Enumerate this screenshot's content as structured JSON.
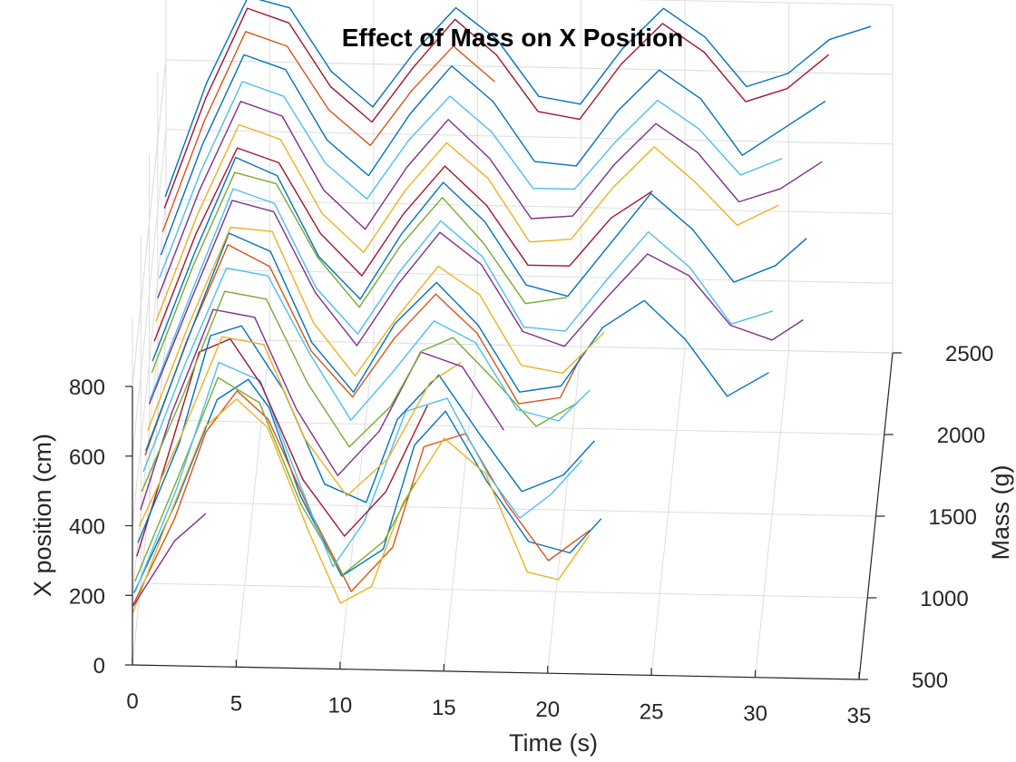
{
  "chart_data": {
    "type": "line",
    "projection": "3d",
    "title": "Effect of Mass on  X Position",
    "xlabel": "Time (s)",
    "ylabel": "Mass (g)",
    "zlabel": "X position (cm)",
    "xlim": [
      0,
      35
    ],
    "ylim": [
      500,
      2500
    ],
    "zlim": [
      0,
      800
    ],
    "x_ticks": [
      "0",
      "5",
      "10",
      "15",
      "20",
      "25",
      "30",
      "35"
    ],
    "y_ticks": [
      "500",
      "1000",
      "1500",
      "2000",
      "2500"
    ],
    "z_ticks": [
      "0",
      "200",
      "400",
      "600",
      "800"
    ],
    "grid": true,
    "legend": "none",
    "series": [
      {
        "color": "#0072BD",
        "x": [
          0,
          2,
          4,
          5.5,
          6.5,
          8,
          10,
          12,
          13.5,
          15,
          17,
          19,
          21,
          22.5
        ],
        "y": [
          600,
          600,
          600,
          600,
          600,
          600,
          600,
          600,
          600,
          600,
          600,
          600,
          600,
          600
        ],
        "z": [
          160,
          420,
          720,
          780,
          700,
          450,
          220,
          300,
          600,
          700,
          500,
          330,
          300,
          400
        ]
      },
      {
        "color": "#D95319",
        "x": [
          0,
          2,
          3.5,
          5,
          6.5,
          8.5,
          10.5,
          12.5,
          14,
          16,
          18,
          20,
          22
        ],
        "y": [
          550,
          550,
          550,
          550,
          550,
          550,
          550,
          550,
          550,
          550,
          550,
          550,
          550
        ],
        "z": [
          150,
          400,
          650,
          770,
          690,
          430,
          200,
          330,
          620,
          660,
          460,
          300,
          390
        ]
      },
      {
        "color": "#EDB120",
        "x": [
          0,
          1.5,
          3.5,
          5,
          6.5,
          8.5,
          10,
          11.5,
          13,
          15,
          17,
          19,
          20.5,
          22
        ],
        "y": [
          520,
          520,
          520,
          520,
          520,
          520,
          520,
          520,
          520,
          520,
          520,
          520,
          520,
          520
        ],
        "z": [
          140,
          380,
          680,
          760,
          680,
          380,
          180,
          230,
          470,
          660,
          560,
          280,
          260,
          390
        ]
      },
      {
        "color": "#7E2F8E",
        "x": [
          0,
          2,
          3.5
        ],
        "y": [
          540,
          540,
          540
        ],
        "z": [
          150,
          340,
          420
        ]
      },
      {
        "color": "#77AC30",
        "x": [
          0,
          2,
          4,
          6,
          8,
          10,
          12,
          13.5
        ],
        "y": [
          650,
          650,
          650,
          650,
          650,
          650,
          650,
          650
        ],
        "z": [
          170,
          460,
          760,
          690,
          400,
          200,
          300,
          470
        ]
      },
      {
        "color": "#4DBEEE",
        "x": [
          0,
          2,
          4,
          6,
          8,
          9.5,
          11,
          13,
          15,
          17,
          18.5,
          20,
          21.5
        ],
        "y": [
          700,
          700,
          700,
          700,
          700,
          700,
          700,
          700,
          700,
          700,
          700,
          700,
          700
        ],
        "z": [
          120,
          420,
          780,
          730,
          420,
          200,
          330,
          650,
          690,
          470,
          350,
          420,
          520
        ]
      },
      {
        "color": "#A2142F",
        "x": [
          0,
          1.5,
          3,
          4.5,
          6,
          8,
          10,
          12,
          14
        ],
        "y": [
          760,
          760,
          760,
          760,
          760,
          760,
          760,
          760,
          760
        ],
        "z": [
          190,
          480,
          780,
          820,
          690,
          420,
          260,
          390,
          640
        ]
      },
      {
        "color": "#0072BD",
        "x": [
          0,
          2,
          3.5,
          5,
          7,
          9,
          11,
          12.5,
          14.5,
          16.5,
          18.5,
          20.5,
          22
        ],
        "y": [
          820,
          820,
          820,
          820,
          820,
          820,
          820,
          820,
          820,
          820,
          820,
          820,
          820
        ],
        "z": [
          200,
          490,
          800,
          830,
          650,
          380,
          330,
          570,
          700,
          530,
          370,
          420,
          520
        ]
      },
      {
        "color": "#EDB120",
        "x": [
          0,
          2,
          4,
          6,
          8,
          10,
          12,
          14,
          15.5
        ],
        "y": [
          900,
          900,
          900,
          900,
          900,
          900,
          900,
          900,
          900
        ],
        "z": [
          210,
          470,
          760,
          740,
          470,
          310,
          420,
          640,
          700
        ]
      },
      {
        "color": "#7E2F8E",
        "x": [
          0,
          1.5,
          3.5,
          5.5,
          7.5,
          9.5,
          11.5,
          13.5,
          15.5,
          17.5
        ],
        "y": [
          980,
          980,
          980,
          980,
          980,
          980,
          980,
          980,
          980,
          980
        ],
        "z": [
          220,
          500,
          800,
          780,
          520,
          330,
          460,
          690,
          650,
          470
        ]
      },
      {
        "color": "#77AC30",
        "x": [
          0,
          2,
          4,
          6,
          8,
          10,
          12,
          13.5,
          15,
          17,
          19,
          21
        ],
        "y": [
          1050,
          1050,
          1050,
          1050,
          1050,
          1050,
          1050,
          1050,
          1050,
          1050,
          1050,
          1050
        ],
        "z": [
          240,
          520,
          820,
          800,
          560,
          380,
          500,
          660,
          700,
          580,
          450,
          520
        ]
      },
      {
        "color": "#4DBEEE",
        "x": [
          0,
          2,
          4,
          6,
          8,
          10,
          12,
          14,
          16,
          18,
          20,
          21.5
        ],
        "y": [
          1150,
          1150,
          1150,
          1150,
          1150,
          1150,
          1150,
          1150,
          1150,
          1150,
          1150,
          1150
        ],
        "z": [
          250,
          560,
          840,
          820,
          600,
          410,
          550,
          700,
          640,
          450,
          420,
          510
        ]
      },
      {
        "color": "#D95319",
        "x": [
          0,
          2,
          4,
          6,
          8,
          10,
          12,
          14,
          16,
          18,
          20,
          21
        ],
        "y": [
          1250,
          1250,
          1250,
          1250,
          1250,
          1250,
          1250,
          1250,
          1250,
          1250,
          1250,
          1250
        ],
        "z": [
          250,
          580,
          860,
          800,
          560,
          430,
          600,
          730,
          620,
          420,
          440,
          560
        ]
      },
      {
        "color": "#0072BD",
        "x": [
          0,
          2,
          4,
          6,
          8,
          10,
          12,
          14,
          16,
          18,
          20,
          22,
          24,
          26,
          28,
          30
        ],
        "y": [
          1300,
          1300,
          1300,
          1300,
          1300,
          1300,
          1300,
          1300,
          1300,
          1300,
          1300,
          1300,
          1300,
          1300,
          1300,
          1300
        ],
        "z": [
          240,
          560,
          870,
          820,
          560,
          420,
          620,
          740,
          620,
          430,
          450,
          620,
          700,
          590,
          430,
          500
        ]
      },
      {
        "color": "#EDB120",
        "x": [
          0,
          2,
          4,
          6,
          8,
          10,
          12,
          14,
          16,
          18,
          20,
          22
        ],
        "y": [
          1400,
          1400,
          1400,
          1400,
          1400,
          1400,
          1400,
          1400,
          1400,
          1400,
          1400,
          1400
        ],
        "z": [
          250,
          560,
          840,
          830,
          570,
          420,
          590,
          740,
          660,
          460,
          440,
          560
        ]
      },
      {
        "color": "#7E2F8E",
        "x": [
          0,
          2,
          4,
          6,
          8,
          10,
          12,
          14,
          16,
          18,
          20,
          22,
          24,
          26,
          28,
          30,
          31.5
        ],
        "y": [
          1500,
          1500,
          1500,
          1500,
          1500,
          1500,
          1500,
          1500,
          1500,
          1500,
          1500,
          1500,
          1500,
          1500,
          1500,
          1500,
          1500
        ],
        "z": [
          280,
          580,
          870,
          840,
          610,
          460,
          640,
          790,
          700,
          510,
          470,
          610,
          740,
          680,
          540,
          500,
          560
        ]
      },
      {
        "color": "#4DBEEE",
        "x": [
          0,
          2,
          4,
          6,
          8,
          10,
          12,
          14,
          16,
          18,
          20,
          22,
          24,
          26,
          28,
          30
        ],
        "y": [
          1550,
          1550,
          1550,
          1550,
          1550,
          1550,
          1550,
          1550,
          1550,
          1550,
          1550,
          1550,
          1550,
          1550,
          1550,
          1550
        ],
        "z": [
          270,
          580,
          880,
          840,
          600,
          470,
          650,
          800,
          700,
          500,
          490,
          640,
          780,
          680,
          520,
          560
        ]
      },
      {
        "color": "#77AC30",
        "x": [
          0,
          2,
          4,
          6,
          8,
          10,
          12,
          14,
          16,
          18,
          20
        ],
        "y": [
          1650,
          1650,
          1650,
          1650,
          1650,
          1650,
          1650,
          1650,
          1650,
          1650,
          1650
        ],
        "z": [
          300,
          610,
          880,
          850,
          640,
          500,
          680,
          820,
          690,
          520,
          540
        ]
      },
      {
        "color": "#0072BD",
        "x": [
          0,
          2,
          4,
          6,
          8,
          10,
          12,
          14,
          16,
          18,
          20,
          22,
          24,
          26,
          28,
          30,
          31.5
        ],
        "y": [
          1700,
          1700,
          1700,
          1700,
          1700,
          1700,
          1700,
          1700,
          1700,
          1700,
          1700,
          1700,
          1700,
          1700,
          1700,
          1700,
          1700
        ],
        "z": [
          310,
          620,
          900,
          850,
          620,
          500,
          690,
          840,
          730,
          550,
          520,
          670,
          820,
          720,
          570,
          620,
          700
        ]
      },
      {
        "color": "#A2142F",
        "x": [
          0,
          2,
          4,
          6,
          8,
          10,
          12,
          14,
          16,
          18,
          20,
          22,
          24
        ],
        "y": [
          1800,
          1800,
          1800,
          1800,
          1800,
          1800,
          1800,
          1800,
          1800,
          1800,
          1800,
          1800,
          1800
        ],
        "z": [
          320,
          630,
          880,
          840,
          640,
          520,
          700,
          840,
          730,
          560,
          560,
          700,
          780
        ]
      },
      {
        "color": "#EDB120",
        "x": [
          0,
          2,
          4,
          6,
          8,
          10,
          12,
          14,
          16,
          18,
          20,
          22,
          24,
          26,
          28,
          30
        ],
        "y": [
          1900,
          1900,
          1900,
          1900,
          1900,
          1900,
          1900,
          1900,
          1900,
          1900,
          1900,
          1900,
          1900,
          1900,
          1900,
          1900
        ],
        "z": [
          330,
          640,
          900,
          860,
          650,
          540,
          720,
          860,
          760,
          580,
          590,
          740,
          860,
          760,
          640,
          700
        ]
      },
      {
        "color": "#7E2F8E",
        "x": [
          0,
          2,
          4,
          6,
          8,
          10,
          12,
          14,
          16,
          18,
          20,
          22,
          24,
          26,
          28,
          30,
          32
        ],
        "y": [
          2000,
          2000,
          2000,
          2000,
          2000,
          2000,
          2000,
          2000,
          2000,
          2000,
          2000,
          2000,
          2000,
          2000,
          2000,
          2000,
          2000
        ],
        "z": [
          350,
          660,
          920,
          880,
          670,
          560,
          740,
          880,
          770,
          600,
          610,
          760,
          880,
          800,
          660,
          700,
          780
        ]
      },
      {
        "color": "#4DBEEE",
        "x": [
          0,
          2,
          4,
          6,
          8,
          10,
          12,
          14,
          16,
          18,
          20,
          22,
          24,
          26,
          28,
          30
        ],
        "y": [
          2100,
          2100,
          2100,
          2100,
          2100,
          2100,
          2100,
          2100,
          2100,
          2100,
          2100,
          2100,
          2100,
          2100,
          2100,
          2100
        ],
        "z": [
          360,
          670,
          930,
          890,
          700,
          600,
          770,
          900,
          800,
          640,
          640,
          780,
          900,
          820,
          690,
          740
        ]
      },
      {
        "color": "#0072BD",
        "x": [
          0,
          2,
          4,
          6,
          8,
          10,
          12,
          14,
          16,
          18,
          20,
          22,
          24,
          26,
          28,
          30,
          32
        ],
        "y": [
          2200,
          2200,
          2200,
          2200,
          2200,
          2200,
          2200,
          2200,
          2200,
          2200,
          2200,
          2200,
          2200,
          2200,
          2200,
          2200,
          2200
        ],
        "z": [
          380,
          700,
          960,
          920,
          720,
          620,
          800,
          940,
          840,
          670,
          660,
          820,
          940,
          860,
          700,
          780,
          860
        ]
      },
      {
        "color": "#D95319",
        "x": [
          0,
          2,
          4,
          6,
          8,
          10,
          12,
          14,
          16
        ],
        "y": [
          2300,
          2300,
          2300,
          2300,
          2300,
          2300,
          2300,
          2300,
          2300
        ],
        "z": [
          400,
          720,
          980,
          940,
          760,
          660,
          820,
          950,
          850
        ]
      },
      {
        "color": "#A2142F",
        "x": [
          0,
          2,
          4,
          6,
          8,
          10,
          12,
          14,
          16,
          18,
          20,
          22,
          24,
          26,
          28,
          30,
          32
        ],
        "y": [
          2400,
          2400,
          2400,
          2400,
          2400,
          2400,
          2400,
          2400,
          2400,
          2400,
          2400,
          2400,
          2400,
          2400,
          2400,
          2400,
          2400
        ],
        "z": [
          420,
          740,
          1000,
          960,
          780,
          680,
          840,
          980,
          880,
          720,
          700,
          860,
          980,
          900,
          760,
          800,
          900
        ]
      },
      {
        "color": "#0072BD",
        "x": [
          0,
          2,
          4,
          6,
          8,
          10,
          12,
          14,
          16,
          18,
          20,
          22,
          24,
          26,
          28,
          30,
          32,
          34
        ],
        "y": [
          2450,
          2450,
          2450,
          2450,
          2450,
          2450,
          2450,
          2450,
          2450,
          2450,
          2450,
          2450,
          2450,
          2450,
          2450,
          2450,
          2450,
          2450
        ],
        "z": [
          430,
          760,
          1010,
          980,
          800,
          700,
          860,
          990,
          900,
          740,
          720,
          880,
          1000,
          920,
          780,
          820,
          920,
          960
        ]
      }
    ]
  }
}
